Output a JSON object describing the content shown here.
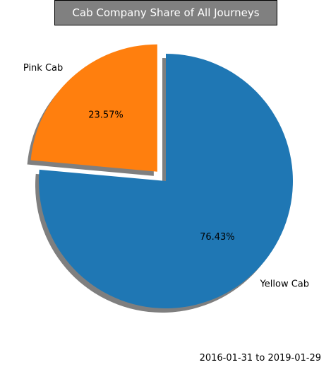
{
  "chart_data": {
    "type": "pie",
    "title": "Cab Company Share of All Journeys",
    "slices": [
      {
        "label": "Pink Cab",
        "value": 23.57,
        "pct_label": "23.57%",
        "color": "#ff7f0e",
        "exploded": true
      },
      {
        "label": "Yellow Cab",
        "value": 76.43,
        "pct_label": "76.43%",
        "color": "#1f77b4",
        "exploded": false
      }
    ],
    "shadow": true,
    "title_background": "#808080",
    "date_range_note": "2016-01-31 to 2019-01-29"
  }
}
